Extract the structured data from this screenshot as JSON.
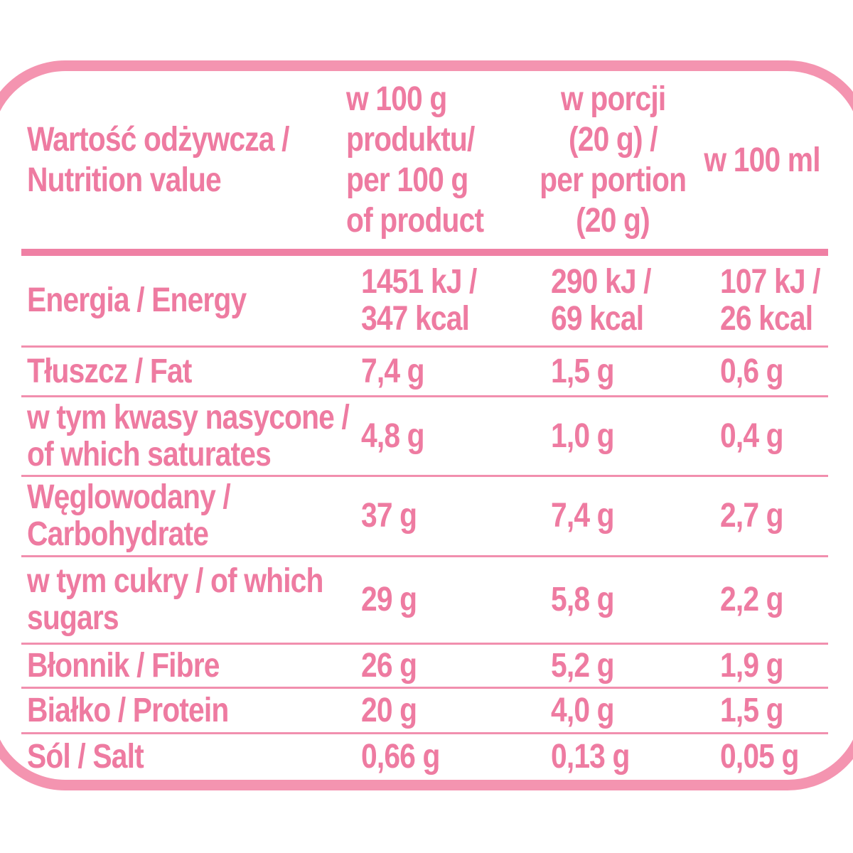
{
  "colors": {
    "background": "#ffffff",
    "text": "#ee7ba1",
    "frame": "#f494b0",
    "rule_thick": "#ef80a4",
    "rule_thin": "#f18fae"
  },
  "table": {
    "header": {
      "cols": [
        {
          "id": "nutrition-value",
          "lines": [
            "Wartość odżywcza /",
            "Nutrition value"
          ]
        },
        {
          "id": "per-100g",
          "lines": [
            "w 100 g",
            "produktu/",
            "per 100 g",
            "of product"
          ]
        },
        {
          "id": "per-portion",
          "lines": [
            "w porcji",
            "(20 g) /",
            "per portion",
            "(20 g)"
          ]
        },
        {
          "id": "per-100ml",
          "lines": [
            "w 100 ml"
          ]
        }
      ]
    },
    "rows": [
      {
        "id": "energy",
        "cells": [
          [
            "Energia / Energy"
          ],
          [
            "1451 kJ /",
            "347 kcal"
          ],
          [
            "290 kJ /",
            "69 kcal"
          ],
          [
            "107 kJ /",
            "26 kcal"
          ]
        ]
      },
      {
        "id": "fat",
        "cells": [
          [
            "Tłuszcz / Fat"
          ],
          [
            "7,4 g"
          ],
          [
            "1,5 g"
          ],
          [
            "0,6 g"
          ]
        ]
      },
      {
        "id": "saturates",
        "cells": [
          [
            "w tym kwasy nasycone /",
            "of which saturates"
          ],
          [
            "4,8 g"
          ],
          [
            "1,0 g"
          ],
          [
            "0,4 g"
          ]
        ]
      },
      {
        "id": "carbohydrate",
        "cells": [
          [
            "Węglowodany /",
            "Carbohydrate"
          ],
          [
            "37 g"
          ],
          [
            "7,4 g"
          ],
          [
            "2,7 g"
          ]
        ]
      },
      {
        "id": "sugars",
        "cells": [
          [
            "w tym cukry / of which",
            "sugars"
          ],
          [
            "29 g"
          ],
          [
            "5,8 g"
          ],
          [
            "2,2 g"
          ]
        ]
      },
      {
        "id": "fibre",
        "cells": [
          [
            "Błonnik / Fibre"
          ],
          [
            "26 g"
          ],
          [
            "5,2 g"
          ],
          [
            "1,9 g"
          ]
        ]
      },
      {
        "id": "protein",
        "cells": [
          [
            "Białko / Protein"
          ],
          [
            "20 g"
          ],
          [
            "4,0 g"
          ],
          [
            "1,5 g"
          ]
        ]
      },
      {
        "id": "salt",
        "cells": [
          [
            "Sól / Salt"
          ],
          [
            "0,66 g"
          ],
          [
            "0,13 g"
          ],
          [
            "0,05 g"
          ]
        ]
      }
    ]
  }
}
